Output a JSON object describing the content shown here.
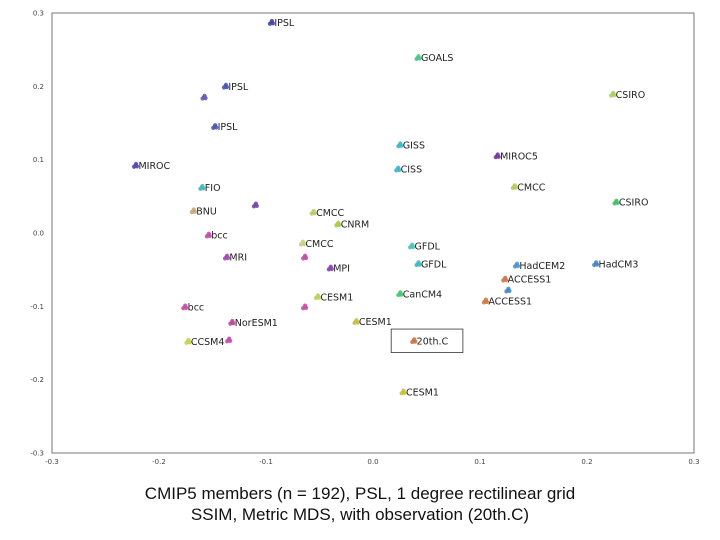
{
  "chart_data": {
    "type": "scatter",
    "title": "",
    "xlabel": "",
    "ylabel": "",
    "xlim": [
      -0.3,
      0.3
    ],
    "ylim": [
      -0.3,
      0.3
    ],
    "x_ticks": [
      "-0.3",
      "-0.2",
      "-0.1",
      "0.0",
      "0.1",
      "0.2",
      "0.3"
    ],
    "y_ticks": [
      "0.3",
      "0.2",
      "0.1",
      "0.0",
      "-0.1",
      "-0.2",
      "-0.3"
    ],
    "grid": false,
    "highlight_box": {
      "label": "20th.C",
      "x_range": [
        0.017,
        0.084
      ],
      "y_range": [
        -0.163,
        -0.131
      ]
    },
    "points": [
      {
        "label": "IPSL",
        "x": -0.095,
        "y": 0.287,
        "color": "#4848a8"
      },
      {
        "label": "GOALS",
        "x": 0.042,
        "y": 0.239,
        "color": "#4ac88a"
      },
      {
        "label": "IPSL",
        "x": -0.138,
        "y": 0.2,
        "color": "#4a5ab8"
      },
      {
        "label": "CSIRO",
        "x": 0.224,
        "y": 0.189,
        "color": "#a8d060"
      },
      {
        "label": "",
        "x": -0.158,
        "y": 0.185,
        "color": "#6a58b8"
      },
      {
        "label": "IPSL",
        "x": -0.148,
        "y": 0.145,
        "color": "#4a5ab8"
      },
      {
        "label": "GISS",
        "x": 0.025,
        "y": 0.12,
        "color": "#40b8c8"
      },
      {
        "label": "MIROC5",
        "x": 0.116,
        "y": 0.105,
        "color": "#7a3aa0"
      },
      {
        "label": "CISS",
        "x": 0.023,
        "y": 0.087,
        "color": "#40b8c8"
      },
      {
        "label": "MIROC",
        "x": -0.222,
        "y": 0.092,
        "color": "#5a4ab0"
      },
      {
        "label": "CMCC",
        "x": 0.132,
        "y": 0.063,
        "color": "#b8cc58"
      },
      {
        "label": "FIO",
        "x": -0.16,
        "y": 0.062,
        "color": "#48b8c0"
      },
      {
        "label": "CSIRO",
        "x": 0.227,
        "y": 0.042,
        "color": "#48c070"
      },
      {
        "label": "",
        "x": -0.11,
        "y": 0.038,
        "color": "#7a48a8"
      },
      {
        "label": "BNU",
        "x": -0.168,
        "y": 0.03,
        "color": "#c8a878"
      },
      {
        "label": "CMCC",
        "x": -0.056,
        "y": 0.028,
        "color": "#c0c870"
      },
      {
        "label": "CNRM",
        "x": -0.033,
        "y": 0.012,
        "color": "#a8cc50"
      },
      {
        "label": "bcc",
        "x": -0.154,
        "y": -0.003,
        "color": "#c850a8"
      },
      {
        "label": "CMCC",
        "x": -0.066,
        "y": -0.014,
        "color": "#c8d080"
      },
      {
        "label": "GFDL",
        "x": 0.036,
        "y": -0.018,
        "color": "#48c8b8"
      },
      {
        "label": "MRI",
        "x": -0.137,
        "y": -0.033,
        "color": "#a848b8"
      },
      {
        "label": "",
        "x": -0.064,
        "y": -0.033,
        "color": "#c050a8"
      },
      {
        "label": "GFDL",
        "x": 0.042,
        "y": -0.042,
        "color": "#40b8c8"
      },
      {
        "label": "HadCEM2",
        "x": 0.134,
        "y": -0.044,
        "color": "#4a98d8"
      },
      {
        "label": "HadCM3",
        "x": 0.208,
        "y": -0.042,
        "color": "#4a88c8"
      },
      {
        "label": "MPI",
        "x": -0.04,
        "y": -0.048,
        "color": "#8a48b8"
      },
      {
        "label": "ACCESS1",
        "x": 0.123,
        "y": -0.063,
        "color": "#d07a48"
      },
      {
        "label": "CanCM4",
        "x": 0.025,
        "y": -0.083,
        "color": "#48c870"
      },
      {
        "label": "CESM1",
        "x": -0.052,
        "y": -0.087,
        "color": "#c0d060"
      },
      {
        "label": "ACCESS1",
        "x": 0.105,
        "y": -0.093,
        "color": "#d07a48"
      },
      {
        "label": "",
        "x": 0.126,
        "y": -0.078,
        "color": "#4a88c8"
      },
      {
        "label": "bcc",
        "x": -0.176,
        "y": -0.101,
        "color": "#c850a8"
      },
      {
        "label": "",
        "x": -0.064,
        "y": -0.101,
        "color": "#c850a8"
      },
      {
        "label": "CESM1",
        "x": -0.016,
        "y": -0.121,
        "color": "#c8c040"
      },
      {
        "label": "NorESM1",
        "x": -0.132,
        "y": -0.122,
        "color": "#c04a98"
      },
      {
        "label": "CCSM4",
        "x": -0.173,
        "y": -0.148,
        "color": "#c8d050"
      },
      {
        "label": "",
        "x": -0.135,
        "y": -0.146,
        "color": "#c850a8"
      },
      {
        "label": "20th.C",
        "x": 0.038,
        "y": -0.147,
        "color": "#c87848"
      },
      {
        "label": "CESM1",
        "x": 0.028,
        "y": -0.217,
        "color": "#c8c040"
      }
    ]
  },
  "caption": {
    "line1": "CMIP5 members (n = 192), PSL, 1 degree rectilinear grid",
    "line2": "SSIM,  Metric MDS, with observation (20th.C)"
  }
}
